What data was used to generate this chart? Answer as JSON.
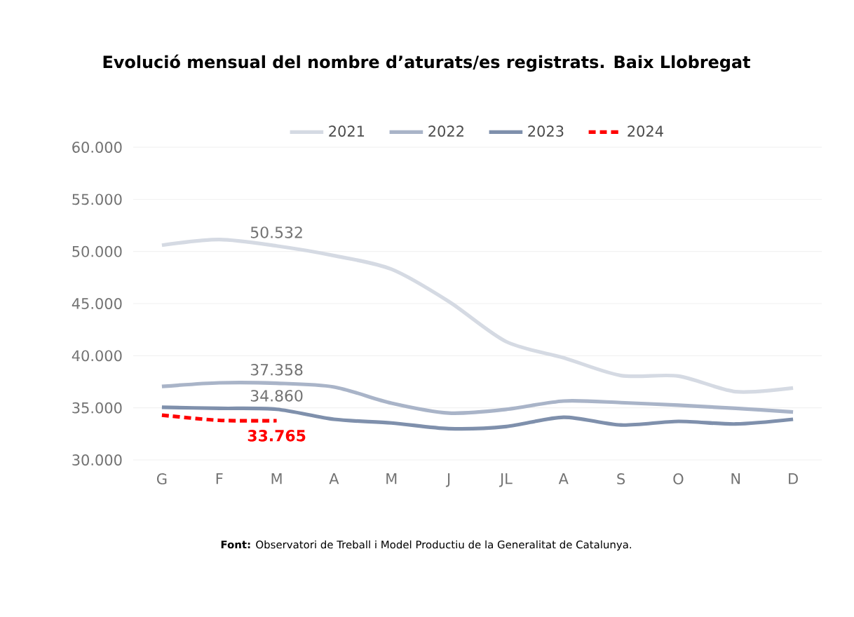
{
  "chart_data": {
    "type": "line",
    "title": "Evolució mensual del nombre d’aturats/es registrats. Baix Llobregat",
    "categories": [
      "G",
      "F",
      "M",
      "A",
      "M",
      "J",
      "JL",
      "A",
      "S",
      "O",
      "N",
      "D"
    ],
    "series": [
      {
        "name": "2021",
        "color": "#d5dae3",
        "values": [
          50600,
          51150,
          50532,
          49600,
          48300,
          45200,
          41350,
          39800,
          38100,
          38050,
          36550,
          36900
        ],
        "value_labels": [
          null,
          null,
          "50.532",
          null,
          null,
          null,
          null,
          null,
          null,
          null,
          null,
          null
        ]
      },
      {
        "name": "2022",
        "color": "#a9b4c8",
        "values": [
          37050,
          37400,
          37358,
          37000,
          35450,
          34500,
          34850,
          35650,
          35500,
          35250,
          34950,
          34600
        ],
        "value_labels": [
          null,
          null,
          "37.358",
          null,
          null,
          null,
          null,
          null,
          null,
          null,
          null,
          null
        ]
      },
      {
        "name": "2023",
        "color": "#7f90ac",
        "values": [
          35050,
          34950,
          34860,
          33900,
          33550,
          33000,
          33200,
          34100,
          33350,
          33700,
          33450,
          33900
        ],
        "value_labels": [
          null,
          null,
          "34.860",
          null,
          null,
          null,
          null,
          null,
          null,
          null,
          null,
          null
        ]
      },
      {
        "name": "2024",
        "color": "#ff0000",
        "line_style": "dashed",
        "values": [
          34300,
          33800,
          33765,
          null,
          null,
          null,
          null,
          null,
          null,
          null,
          null,
          null
        ],
        "value_labels": [
          null,
          null,
          "33.765",
          null,
          null,
          null,
          null,
          null,
          null,
          null,
          null,
          null
        ]
      }
    ],
    "ylim": [
      30000,
      60000
    ],
    "yticks": [
      {
        "value": 30000,
        "label": "30.000"
      },
      {
        "value": 35000,
        "label": "35.000"
      },
      {
        "value": 40000,
        "label": "40.000"
      },
      {
        "value": 45000,
        "label": "45.000"
      },
      {
        "value": 50000,
        "label": "50.000"
      },
      {
        "value": 55000,
        "label": "55.000"
      },
      {
        "value": 60000,
        "label": "60.000"
      }
    ],
    "grid": "y",
    "legend": "top",
    "marker": "none",
    "line_style": "solid",
    "annotations": [
      "**Font:** Observatori de Treball i Model Productiu de la Generalitat de Catalunya."
    ]
  }
}
